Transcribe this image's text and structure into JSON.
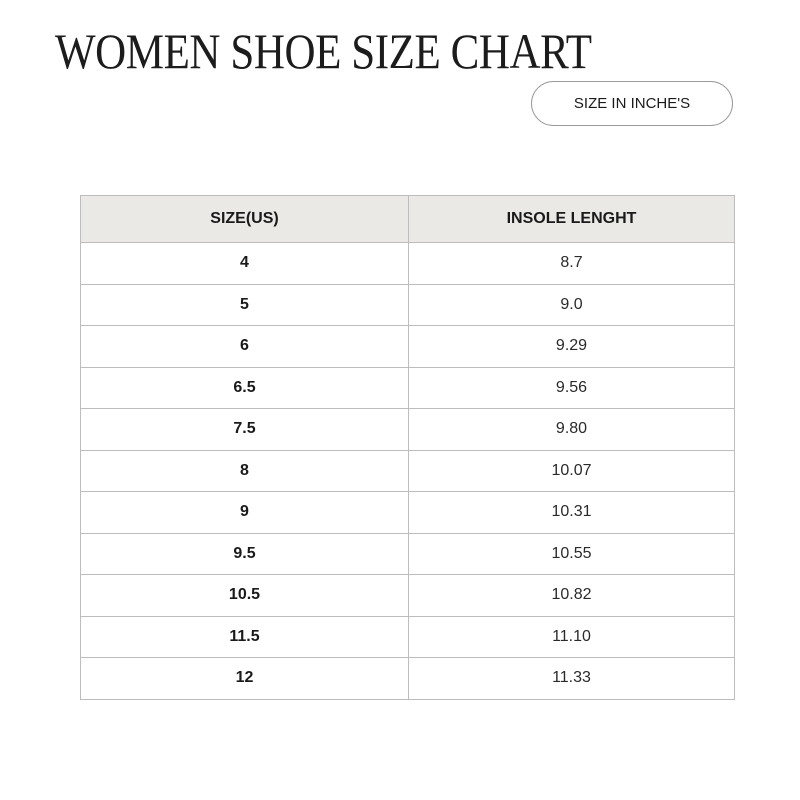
{
  "title": "WOMEN SHOE SIZE CHART",
  "unit_button": "SIZE IN INCHE'S",
  "table": {
    "headers": [
      "SIZE(US)",
      "INSOLE LENGHT"
    ],
    "rows": [
      [
        "4",
        "8.7"
      ],
      [
        "5",
        "9.0"
      ],
      [
        "6",
        "9.29"
      ],
      [
        "6.5",
        "9.56"
      ],
      [
        "7.5",
        "9.80"
      ],
      [
        "8",
        "10.07"
      ],
      [
        "9",
        "10.31"
      ],
      [
        "9.5",
        "10.55"
      ],
      [
        "10.5",
        "10.82"
      ],
      [
        "11.5",
        "11.10"
      ],
      [
        "12",
        "11.33"
      ]
    ]
  },
  "colors": {
    "header_bg": "#ebe9e5",
    "border": "#bdbdbd"
  }
}
